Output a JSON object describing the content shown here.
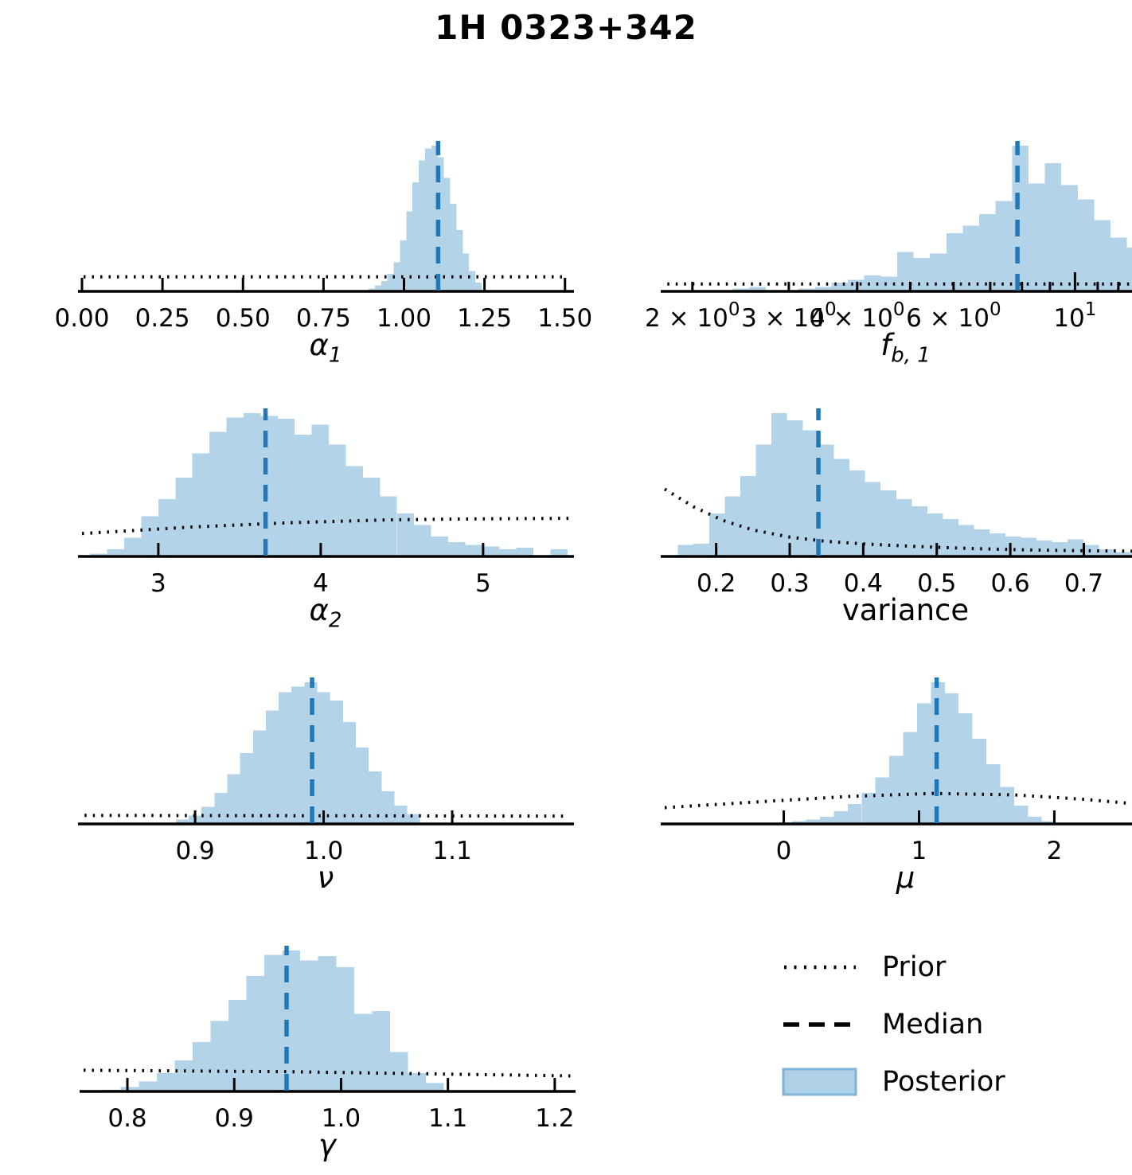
{
  "title": "1H 0323+342",
  "colors": {
    "posterior_fill": "#b3d3e8",
    "median_line": "#2277b5",
    "prior_line": "#000000",
    "axis": "#000000",
    "legend_patch_fill": "#aed1e7",
    "legend_patch_edge": "#7fb3d8"
  },
  "legend": {
    "items": [
      {
        "label": "Prior",
        "style": "dotted-line"
      },
      {
        "label": "Median",
        "style": "dashed-line"
      },
      {
        "label": "Posterior",
        "style": "filled-patch"
      }
    ]
  },
  "chart_data": {
    "type": "bar",
    "subtype": "posterior-histogram-grid",
    "title": "1H 0323+342",
    "grid": false,
    "legend_position": "bottom-right",
    "legend_entries": [
      "Prior",
      "Median",
      "Posterior"
    ],
    "panels": [
      {
        "param": "alpha_1",
        "xlabel": {
          "main": "α",
          "sub": "1",
          "style": "italic"
        },
        "scale": "linear",
        "x_range": [
          0.0,
          1.513
        ],
        "ticks": [
          {
            "v": 0.0,
            "label": "0.00"
          },
          {
            "v": 0.25,
            "label": "0.25"
          },
          {
            "v": 0.5,
            "label": "0.50"
          },
          {
            "v": 0.75,
            "label": "0.75"
          },
          {
            "v": 1.0,
            "label": "1.00"
          },
          {
            "v": 1.25,
            "label": "1.25"
          },
          {
            "v": 1.5,
            "label": "1.50"
          }
        ],
        "bins": {
          "start": 0.89,
          "width": 0.0195
        },
        "heights": [
          0.02,
          0.04,
          0.07,
          0.12,
          0.2,
          0.35,
          0.55,
          0.75,
          0.9,
          0.98,
          1.0,
          0.92,
          0.78,
          0.6,
          0.42,
          0.26,
          0.14,
          0.06
        ],
        "median": 1.106,
        "prior": [
          [
            0.005,
            0.1
          ],
          [
            1.508,
            0.1
          ]
        ],
        "ylim": [
          0,
          1
        ]
      },
      {
        "param": "f_b_1",
        "xlabel": {
          "main": "f",
          "sub": "b, 1",
          "style": "italic"
        },
        "scale": "log",
        "x_range": [
          1.78,
          13.5
        ],
        "ticks": [
          {
            "v": 2,
            "label": "2 × 10",
            "sup": "0"
          },
          {
            "v": 3,
            "label": "3 × 10",
            "sup": "0"
          },
          {
            "v": 4,
            "label": "4 × 10",
            "sup": "0"
          },
          {
            "v": 6,
            "label": "6 × 10",
            "sup": "0"
          },
          {
            "v": 10,
            "label": "10",
            "sup": "1",
            "major": true
          }
        ],
        "minor_ticks": [
          5,
          7,
          8,
          9,
          11,
          12,
          13
        ],
        "bins": {
          "log10_start": 0.375,
          "log10_width": 0.03
        },
        "heights": [
          0.02,
          0.03,
          0.0,
          0.0,
          0.02,
          0.03,
          0.06,
          0.08,
          0.11,
          0.1,
          0.27,
          0.23,
          0.26,
          0.4,
          0.45,
          0.53,
          0.62,
          1.0,
          0.74,
          0.88,
          0.73,
          0.63,
          0.49,
          0.37,
          0.3
        ],
        "median": 7.85,
        "prior": [
          [
            1.8,
            0.05
          ],
          [
            13.45,
            0.05
          ]
        ],
        "ylim": [
          0,
          1
        ]
      },
      {
        "param": "alpha_2",
        "xlabel": {
          "main": "α",
          "sub": "2",
          "style": "italic"
        },
        "scale": "linear",
        "x_range": [
          2.53,
          5.53
        ],
        "ticks": [
          {
            "v": 3,
            "label": "3"
          },
          {
            "v": 4,
            "label": "4"
          },
          {
            "v": 5,
            "label": "5"
          }
        ],
        "bins": {
          "start": 2.58,
          "width": 0.105
        },
        "heights": [
          0.02,
          0.05,
          0.13,
          0.28,
          0.4,
          0.55,
          0.72,
          0.87,
          0.97,
          1.0,
          0.98,
          0.96,
          0.85,
          0.92,
          0.78,
          0.63,
          0.55,
          0.42,
          0.3,
          0.22,
          0.14,
          0.1,
          0.08,
          0.07,
          0.05,
          0.06,
          0.0,
          0.05
        ],
        "median": 3.66,
        "prior": [
          [
            2.53,
            0.16
          ],
          [
            3.2,
            0.205
          ],
          [
            3.8,
            0.235
          ],
          [
            4.4,
            0.255
          ],
          [
            5.0,
            0.263
          ],
          [
            5.53,
            0.266
          ]
        ],
        "ylim": [
          0,
          1
        ]
      },
      {
        "param": "variance",
        "xlabel": {
          "main": "variance",
          "sub": "",
          "style": "plain"
        },
        "scale": "linear",
        "x_range": [
          0.13,
          0.785
        ],
        "ticks": [
          {
            "v": 0.2,
            "label": "0.2"
          },
          {
            "v": 0.3,
            "label": "0.3"
          },
          {
            "v": 0.4,
            "label": "0.4"
          },
          {
            "v": 0.5,
            "label": "0.5"
          },
          {
            "v": 0.6,
            "label": "0.6"
          },
          {
            "v": 0.7,
            "label": "0.7"
          }
        ],
        "bins": {
          "start": 0.148,
          "width": 0.0212
        },
        "heights": [
          0.08,
          0.09,
          0.3,
          0.42,
          0.56,
          0.78,
          1.0,
          0.95,
          0.88,
          0.78,
          0.68,
          0.6,
          0.52,
          0.46,
          0.4,
          0.35,
          0.3,
          0.26,
          0.22,
          0.19,
          0.16,
          0.14,
          0.13,
          0.11,
          0.1,
          0.12,
          0.08,
          0.05,
          0.03,
          0.02
        ],
        "median": 0.339,
        "prior": [
          [
            0.13,
            0.47
          ],
          [
            0.17,
            0.345
          ],
          [
            0.21,
            0.25
          ],
          [
            0.25,
            0.185
          ],
          [
            0.3,
            0.135
          ],
          [
            0.35,
            0.105
          ],
          [
            0.4,
            0.088
          ],
          [
            0.47,
            0.07
          ],
          [
            0.55,
            0.055
          ],
          [
            0.63,
            0.045
          ],
          [
            0.7,
            0.04
          ],
          [
            0.785,
            0.036
          ]
        ],
        "ylim": [
          0,
          1
        ]
      },
      {
        "param": "nu",
        "xlabel": {
          "main": "ν",
          "sub": "",
          "style": "italic"
        },
        "scale": "linear",
        "x_range": [
          0.812,
          1.191
        ],
        "ticks": [
          {
            "v": 0.9,
            "label": "0.9"
          },
          {
            "v": 1.0,
            "label": "1.0"
          },
          {
            "v": 1.1,
            "label": "1.1"
          }
        ],
        "bins": {
          "start": 0.885,
          "width": 0.01
        },
        "heights": [
          0.03,
          0.06,
          0.12,
          0.22,
          0.35,
          0.5,
          0.66,
          0.8,
          0.93,
          0.97,
          1.0,
          0.93,
          0.87,
          0.72,
          0.54,
          0.37,
          0.23,
          0.13,
          0.07
        ],
        "median": 0.991,
        "prior": [
          [
            0.814,
            0.06
          ],
          [
            1.189,
            0.055
          ]
        ],
        "ylim": [
          0,
          1
        ]
      },
      {
        "param": "mu",
        "xlabel": {
          "main": "μ",
          "sub": "",
          "style": "italic"
        },
        "scale": "linear",
        "x_range": [
          -0.88,
          2.68
        ],
        "ticks": [
          {
            "v": 0,
            "label": "0"
          },
          {
            "v": 1,
            "label": "1"
          },
          {
            "v": 2,
            "label": "2"
          }
        ],
        "bins": {
          "start": -0.04,
          "width": 0.1025
        },
        "heights": [
          0.01,
          0.02,
          0.03,
          0.05,
          0.09,
          0.14,
          0.22,
          0.33,
          0.48,
          0.65,
          0.85,
          1.0,
          0.92,
          0.78,
          0.6,
          0.42,
          0.26,
          0.13,
          0.05,
          0.02
        ],
        "median": 1.13,
        "prior": [
          [
            -0.88,
            0.115
          ],
          [
            -0.2,
            0.155
          ],
          [
            0.5,
            0.195
          ],
          [
            1.1,
            0.215
          ],
          [
            1.7,
            0.205
          ],
          [
            2.2,
            0.175
          ],
          [
            2.68,
            0.135
          ]
        ],
        "ylim": [
          0,
          1
        ]
      },
      {
        "param": "gamma",
        "xlabel": {
          "main": "γ",
          "sub": "",
          "style": "italic"
        },
        "scale": "linear",
        "x_range": [
          0.759,
          1.215
        ],
        "ticks": [
          {
            "v": 0.8,
            "label": "0.8"
          },
          {
            "v": 0.9,
            "label": "0.9"
          },
          {
            "v": 1.0,
            "label": "1.0"
          },
          {
            "v": 1.1,
            "label": "1.1"
          },
          {
            "v": 1.2,
            "label": "1.2"
          }
        ],
        "bins": {
          "start": 0.777,
          "width": 0.0168
        },
        "heights": [
          0.01,
          0.03,
          0.07,
          0.13,
          0.22,
          0.35,
          0.5,
          0.65,
          0.82,
          0.97,
          1.0,
          0.93,
          0.96,
          0.88,
          0.55,
          0.57,
          0.28,
          0.13,
          0.06
        ],
        "median": 0.949,
        "prior": [
          [
            0.759,
            0.15
          ],
          [
            0.95,
            0.14
          ],
          [
            1.08,
            0.125
          ],
          [
            1.215,
            0.11
          ]
        ],
        "ylim": [
          0,
          1
        ]
      }
    ]
  }
}
